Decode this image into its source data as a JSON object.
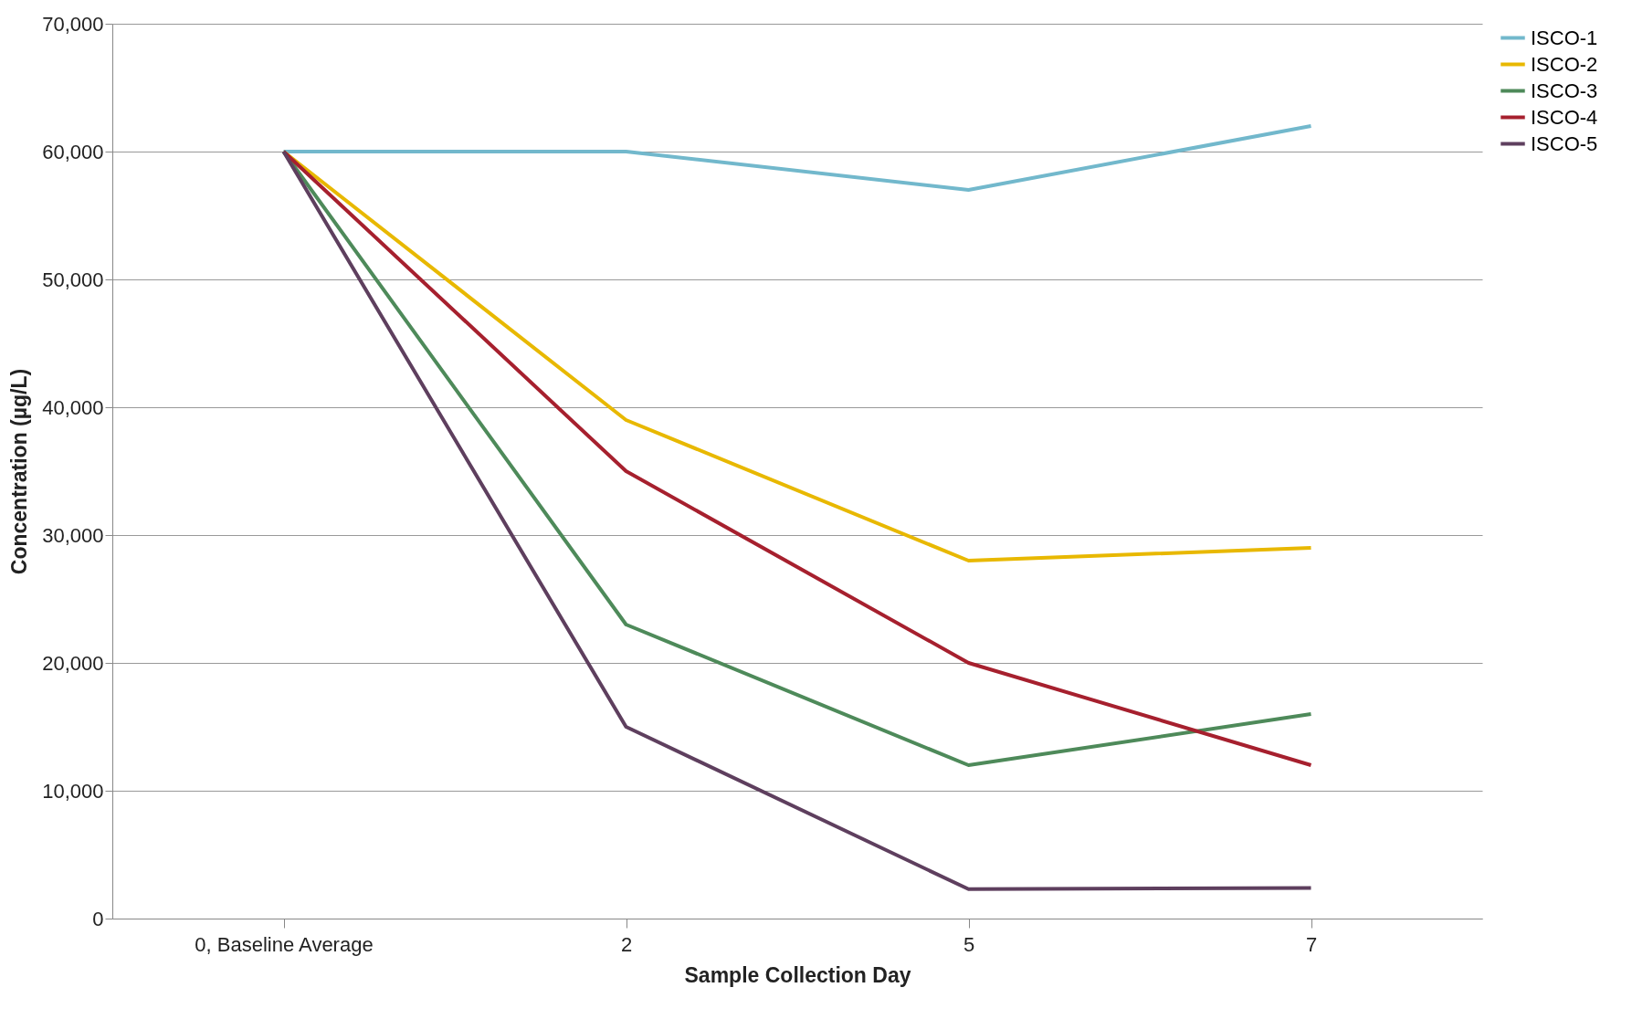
{
  "chart_data": {
    "type": "line",
    "xlabel": "Sample Collection Day",
    "ylabel": "Concentration (µg/L)",
    "categories": [
      "0, Baseline Average",
      "2",
      "5",
      "7"
    ],
    "series": [
      {
        "name": "ISCO-1",
        "color": "#72b8cc",
        "values": [
          60000,
          60000,
          57000,
          62000
        ]
      },
      {
        "name": "ISCO-2",
        "color": "#e8b800",
        "values": [
          60000,
          39000,
          28000,
          29000
        ]
      },
      {
        "name": "ISCO-3",
        "color": "#4e8a5a",
        "values": [
          60000,
          23000,
          12000,
          16000
        ]
      },
      {
        "name": "ISCO-4",
        "color": "#a6202e",
        "values": [
          60000,
          35000,
          20000,
          12000
        ]
      },
      {
        "name": "ISCO-5",
        "color": "#5e3f5e",
        "values": [
          60000,
          15000,
          2300,
          2400
        ]
      }
    ],
    "ylim": [
      0,
      70000
    ],
    "yticks": [
      {
        "value": 0,
        "label": "0"
      },
      {
        "value": 10000,
        "label": "10,000"
      },
      {
        "value": 20000,
        "label": "20,000"
      },
      {
        "value": 30000,
        "label": "30,000"
      },
      {
        "value": 40000,
        "label": "40,000"
      },
      {
        "value": 50000,
        "label": "50,000"
      },
      {
        "value": 60000,
        "label": "60,000"
      },
      {
        "value": 70000,
        "label": "70,000"
      }
    ],
    "grid": "y",
    "legend": "right",
    "marker": "none",
    "line_style": "solid"
  }
}
